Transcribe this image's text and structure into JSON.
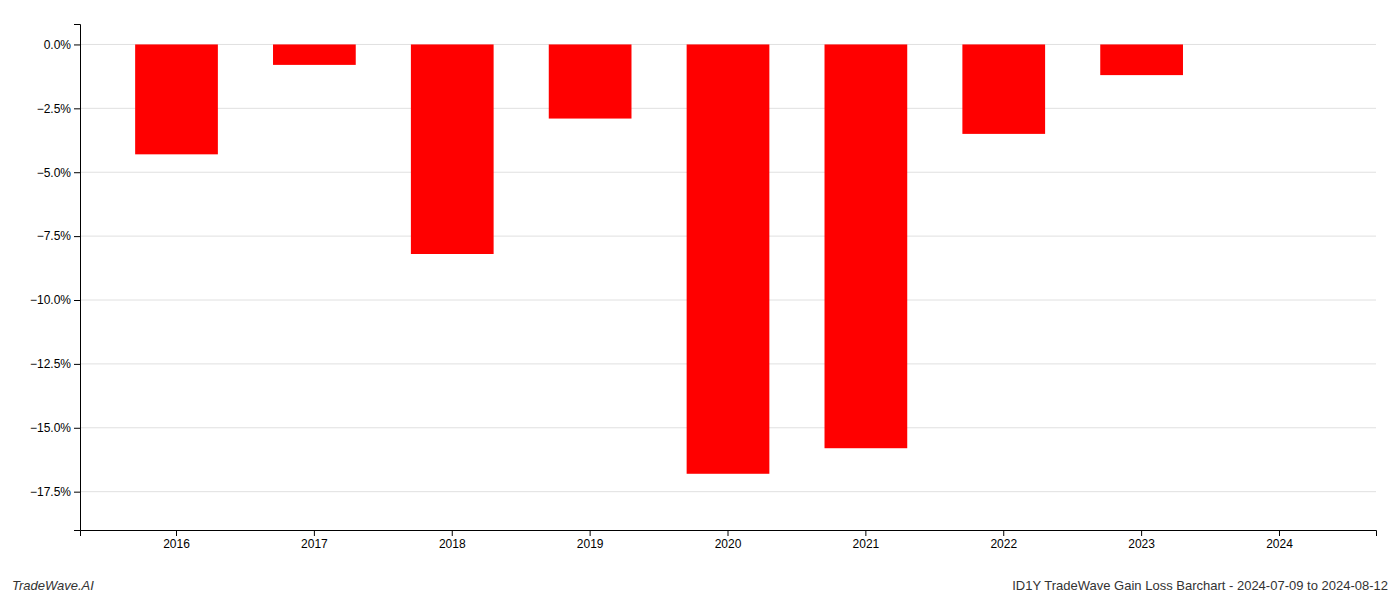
{
  "chart_data": {
    "type": "bar",
    "categories": [
      "2016",
      "2017",
      "2018",
      "2019",
      "2020",
      "2021",
      "2022",
      "2023",
      "2024"
    ],
    "values": [
      -4.3,
      -0.8,
      -8.2,
      -2.9,
      -16.8,
      -15.8,
      -3.5,
      -1.2,
      0.0
    ],
    "color": "#ff0000",
    "ylim": [
      -19.0,
      0.8
    ],
    "yticks": [
      {
        "value": 0.0,
        "label": "0.0%"
      },
      {
        "value": -2.5,
        "label": "−2.5%"
      },
      {
        "value": -5.0,
        "label": "−5.0%"
      },
      {
        "value": -7.5,
        "label": "−7.5%"
      },
      {
        "value": -10.0,
        "label": "−10.0%"
      },
      {
        "value": -12.5,
        "label": "−12.5%"
      },
      {
        "value": -15.0,
        "label": "−15.0%"
      },
      {
        "value": -17.5,
        "label": "−17.5%"
      }
    ],
    "grid": true,
    "annotations": [
      "TradeWave.AI",
      "ID1Y TradeWave Gain Loss Barchart - 2024-07-09 to 2024-08-12"
    ]
  }
}
